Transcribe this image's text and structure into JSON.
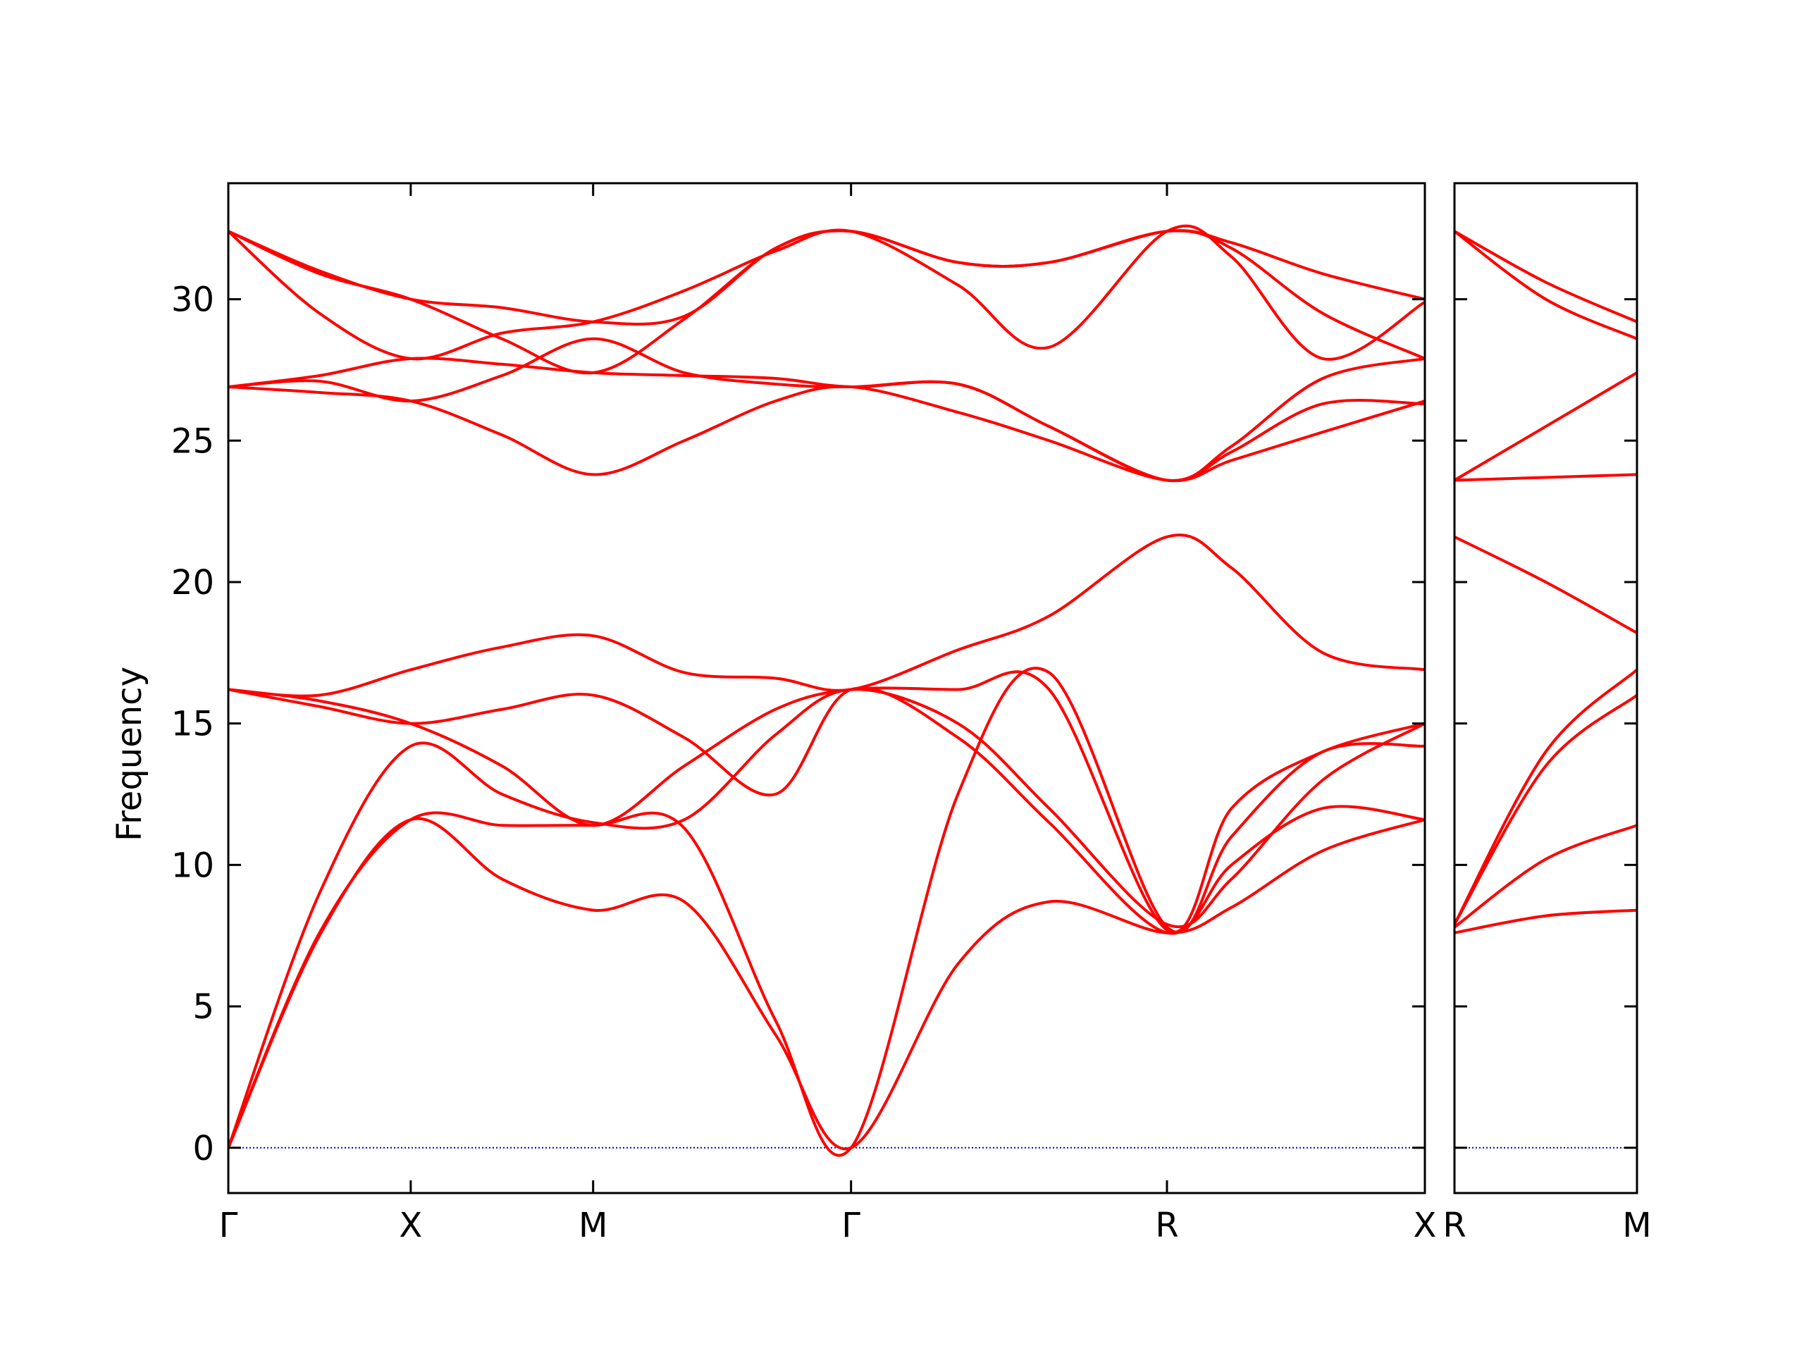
{
  "colors": {
    "band": "#ff0000",
    "zero_line": "#0000aa",
    "axes": "#000000",
    "background": "#ffffff"
  },
  "chart_data": {
    "type": "line",
    "title": "",
    "xlabel": "",
    "ylabel": "Frequency",
    "ylim": [
      -1.6,
      34.1
    ],
    "yticks": [
      0,
      5,
      10,
      15,
      20,
      25,
      30
    ],
    "grid": false,
    "legend": "none",
    "zero_line": {
      "y": 0,
      "style": "dotted"
    },
    "panels": [
      {
        "name": "main",
        "high_symmetry_points": [
          {
            "label": "Γ",
            "x": 0
          },
          {
            "label": "X",
            "x": 1
          },
          {
            "label": "M",
            "x": 2
          },
          {
            "label": "Γ",
            "x": 3.414
          },
          {
            "label": "R",
            "x": 5.146
          },
          {
            "label": "X",
            "x": 6.56
          }
        ],
        "xlim": [
          0,
          6.56
        ],
        "bands": [
          {
            "x": [
              0,
              0.5,
              1,
              1.5,
              2,
              2.5,
              3,
              3.414,
              4.0,
              4.5,
              5.146,
              5.5,
              6.0,
              6.56
            ],
            "y": [
              0,
              9.0,
              14.2,
              12.5,
              11.5,
              11.6,
              14.6,
              16.2,
              15.0,
              12.0,
              7.9,
              9.5,
              13.0,
              15.0
            ]
          },
          {
            "x": [
              0,
              0.5,
              1,
              1.5,
              2,
              2.5,
              3,
              3.414,
              4.0,
              4.5,
              5.146,
              5.5,
              6.0,
              6.56
            ],
            "y": [
              0,
              7.5,
              11.6,
              9.5,
              8.4,
              8.7,
              4.0,
              0,
              6.5,
              8.7,
              7.6,
              8.5,
              10.5,
              11.6
            ]
          },
          {
            "x": [
              0,
              0.5,
              1,
              1.5,
              2,
              2.5,
              3,
              3.414,
              4.0,
              4.5,
              5.146,
              5.5,
              6.0,
              6.56
            ],
            "y": [
              0,
              7.6,
              11.6,
              11.4,
              11.4,
              11.3,
              4.5,
              0,
              12.5,
              16.8,
              7.8,
              11.0,
              14.0,
              14.2
            ]
          },
          {
            "x": [
              0,
              0.5,
              1,
              1.5,
              2,
              2.5,
              3,
              3.414,
              4.0,
              4.5,
              5.146,
              5.5,
              6.0,
              6.56
            ],
            "y": [
              16.2,
              15.6,
              15.0,
              15.5,
              16.0,
              14.5,
              12.5,
              16.2,
              14.5,
              11.5,
              7.6,
              10.0,
              12.0,
              11.6
            ]
          },
          {
            "x": [
              0,
              0.5,
              1,
              1.5,
              2,
              2.5,
              3,
              3.414,
              4.0,
              4.5,
              5.146,
              5.5,
              6.0,
              6.56
            ],
            "y": [
              16.2,
              15.8,
              15.0,
              13.5,
              11.4,
              13.5,
              15.5,
              16.2,
              16.2,
              16.2,
              7.7,
              12.0,
              14.0,
              15.0
            ]
          },
          {
            "x": [
              0,
              0.5,
              1,
              1.5,
              2,
              2.5,
              3,
              3.414,
              4.0,
              4.5,
              5.146,
              5.5,
              6.0,
              6.56
            ],
            "y": [
              16.2,
              16.0,
              16.9,
              17.7,
              18.1,
              16.8,
              16.6,
              16.2,
              17.6,
              18.8,
              21.6,
              20.5,
              17.5,
              16.9
            ]
          },
          {
            "x": [
              0,
              0.5,
              1,
              1.5,
              2,
              2.5,
              3,
              3.414,
              4.0,
              4.5,
              5.146,
              5.5,
              6.0,
              6.56
            ],
            "y": [
              26.9,
              26.7,
              26.4,
              25.2,
              23.8,
              25.0,
              26.4,
              26.9,
              26.0,
              25.0,
              23.6,
              24.3,
              25.3,
              26.4
            ]
          },
          {
            "x": [
              0,
              0.5,
              1,
              1.5,
              2,
              2.5,
              3,
              3.414,
              4.0,
              4.5,
              5.146,
              5.5,
              6.0,
              6.56
            ],
            "y": [
              26.9,
              27.1,
              26.4,
              27.3,
              28.6,
              27.4,
              27.0,
              26.9,
              27.0,
              25.5,
              23.6,
              24.6,
              26.3,
              26.3
            ]
          },
          {
            "x": [
              0,
              0.5,
              1,
              1.5,
              2,
              2.5,
              3,
              3.414,
              4.0,
              4.5,
              5.146,
              5.5,
              6.0,
              6.56
            ],
            "y": [
              26.9,
              27.3,
              27.9,
              27.7,
              27.4,
              27.3,
              27.2,
              26.9,
              27.0,
              25.5,
              23.6,
              24.8,
              27.2,
              27.9
            ]
          },
          {
            "x": [
              0,
              0.5,
              1,
              1.5,
              2,
              2.5,
              3,
              3.414,
              4.0,
              4.5,
              5.146,
              5.5,
              6.0,
              6.56
            ],
            "y": [
              32.4,
              29.5,
              27.9,
              28.8,
              29.2,
              30.3,
              31.7,
              32.4,
              30.5,
              28.3,
              32.4,
              31.5,
              27.9,
              29.9
            ]
          },
          {
            "x": [
              0,
              0.5,
              1,
              1.5,
              2,
              2.5,
              3,
              3.414,
              4.0,
              4.5,
              5.146,
              5.5,
              6.0,
              6.56
            ],
            "y": [
              32.4,
              30.9,
              30.0,
              28.6,
              27.4,
              29.3,
              31.8,
              32.4,
              31.3,
              31.3,
              32.4,
              31.8,
              29.5,
              27.9
            ]
          },
          {
            "x": [
              0,
              0.5,
              1,
              1.5,
              2,
              2.5,
              3,
              3.414,
              4.0,
              4.5,
              5.146,
              5.5,
              6.0,
              6.56
            ],
            "y": [
              32.4,
              31.0,
              30.0,
              29.7,
              29.2,
              29.4,
              31.8,
              32.4,
              31.3,
              31.3,
              32.4,
              32.0,
              30.9,
              30.0
            ]
          }
        ]
      },
      {
        "name": "secondary",
        "high_symmetry_points": [
          {
            "label": "R",
            "x": 0
          },
          {
            "label": "M",
            "x": 1
          }
        ],
        "xlim": [
          0,
          1
        ],
        "bands": [
          {
            "x": [
              0,
              0.5,
              1
            ],
            "y": [
              7.6,
              8.2,
              8.4
            ]
          },
          {
            "x": [
              0,
              0.5,
              1
            ],
            "y": [
              7.8,
              10.2,
              11.4
            ]
          },
          {
            "x": [
              0,
              0.5,
              1
            ],
            "y": [
              7.9,
              13.5,
              16.0
            ]
          },
          {
            "x": [
              0,
              0.5,
              1
            ],
            "y": [
              7.9,
              14.0,
              16.9
            ]
          },
          {
            "x": [
              0,
              0.5,
              1
            ],
            "y": [
              21.6,
              20.0,
              18.2
            ]
          },
          {
            "x": [
              0,
              0.5,
              1
            ],
            "y": [
              23.6,
              23.7,
              23.8
            ]
          },
          {
            "x": [
              0,
              0.5,
              1
            ],
            "y": [
              23.6,
              25.5,
              27.4
            ]
          },
          {
            "x": [
              0,
              0.5,
              1
            ],
            "y": [
              32.4,
              30.0,
              28.6
            ]
          },
          {
            "x": [
              0,
              0.5,
              1
            ],
            "y": [
              32.4,
              30.6,
              29.2
            ]
          }
        ]
      }
    ]
  }
}
